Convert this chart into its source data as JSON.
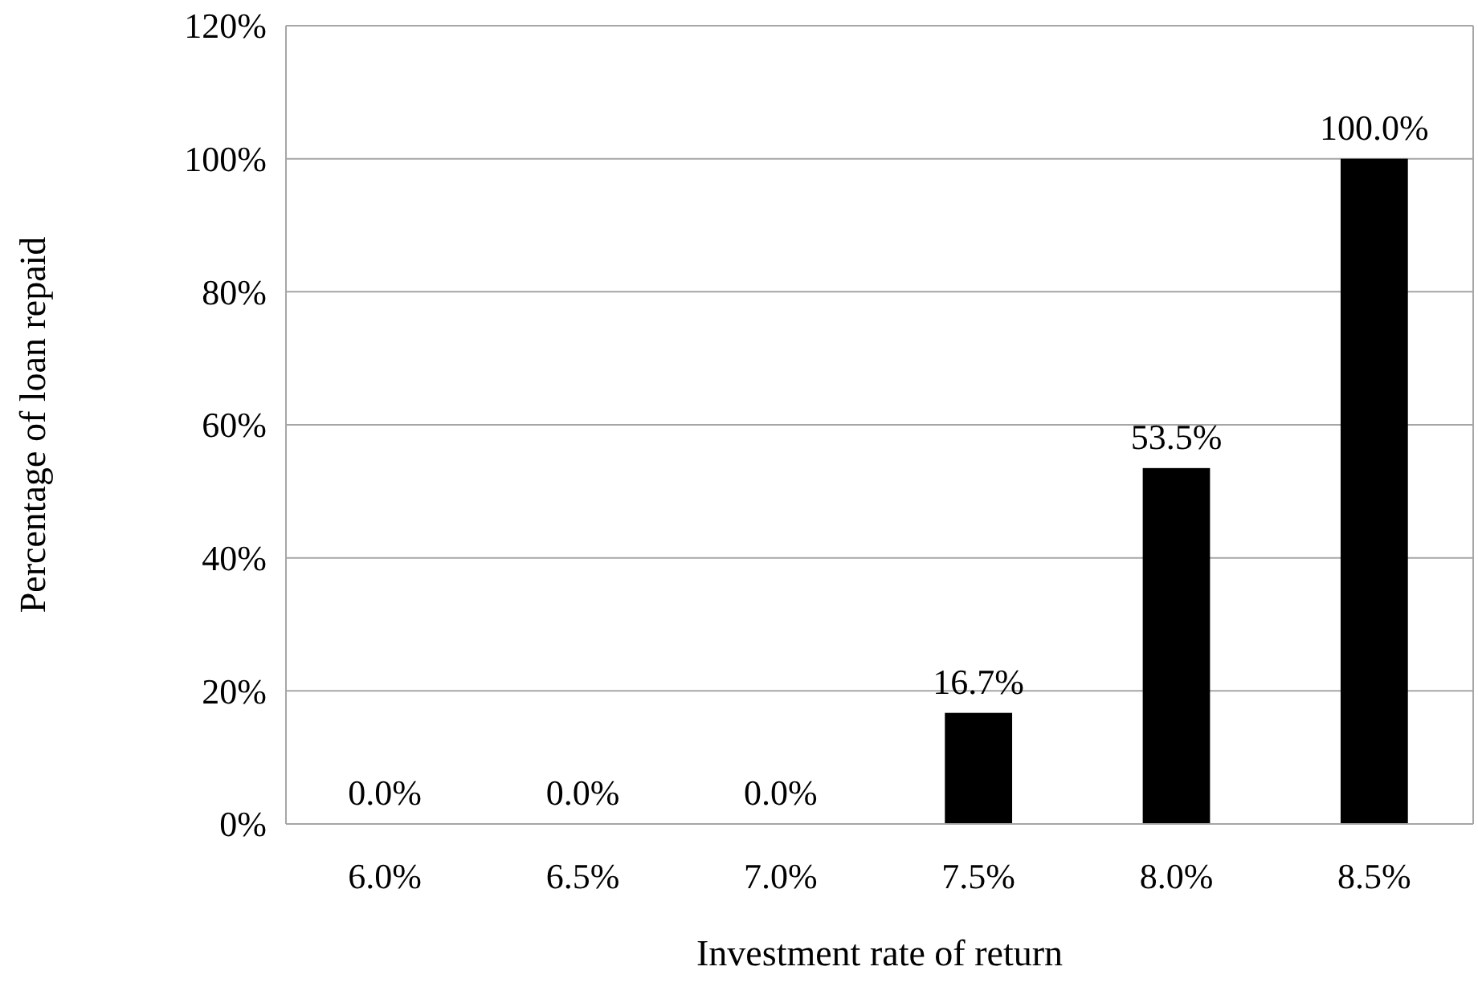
{
  "chart_data": {
    "type": "bar",
    "xlabel": "Investment rate of return",
    "ylabel": "Percentage of loan repaid",
    "categories": [
      "6.0%",
      "6.5%",
      "7.0%",
      "7.5%",
      "8.0%",
      "8.5%"
    ],
    "values": [
      0,
      0,
      0,
      16.7,
      53.5,
      100
    ],
    "color": "#000000",
    "value_labels": [
      "0.0%",
      "0.0%",
      "0.0%",
      "16.7%",
      "53.5%",
      "100.0%"
    ],
    "ylim": [
      0,
      120
    ],
    "yticks": [
      {
        "value": 0,
        "label": "0%"
      },
      {
        "value": 20,
        "label": "20%"
      },
      {
        "value": 40,
        "label": "40%"
      },
      {
        "value": 60,
        "label": "60%"
      },
      {
        "value": 80,
        "label": "80%"
      },
      {
        "value": 100,
        "label": "100%"
      },
      {
        "value": 120,
        "label": "120%"
      }
    ],
    "grid": "y"
  }
}
